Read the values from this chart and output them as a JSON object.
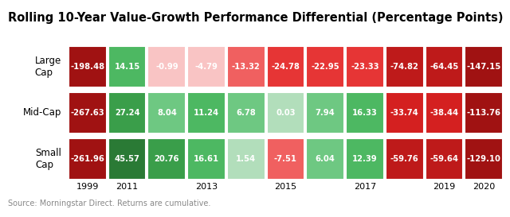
{
  "title": "Rolling 10-Year Value-Growth Performance Differential (Percentage Points)",
  "row_labels": [
    "Large\nCap",
    "Mid-Cap",
    "Small\nCap"
  ],
  "col_labels": [
    "1999",
    "2011",
    "",
    "2013",
    "",
    "2015",
    "",
    "2017",
    "",
    "2019",
    "2020"
  ],
  "values": [
    [
      -198.48,
      14.15,
      -0.99,
      -4.79,
      -13.32,
      -24.78,
      -22.95,
      -23.33,
      -74.82,
      -64.45,
      -147.15
    ],
    [
      -267.63,
      27.24,
      8.04,
      11.24,
      6.78,
      0.03,
      7.94,
      16.33,
      -33.74,
      -38.44,
      -113.76
    ],
    [
      -261.96,
      45.57,
      20.76,
      16.61,
      1.54,
      -7.51,
      6.04,
      12.39,
      -59.76,
      -59.64,
      -129.1
    ]
  ],
  "source_text": "Source: Morningstar Direct. Returns are cumulative.",
  "bg_color": "#ffffff",
  "title_fontsize": 10.5,
  "cell_fontsize": 7.2,
  "row_label_fontsize": 8.5,
  "col_label_fontsize": 8.0,
  "source_fontsize": 7.0
}
